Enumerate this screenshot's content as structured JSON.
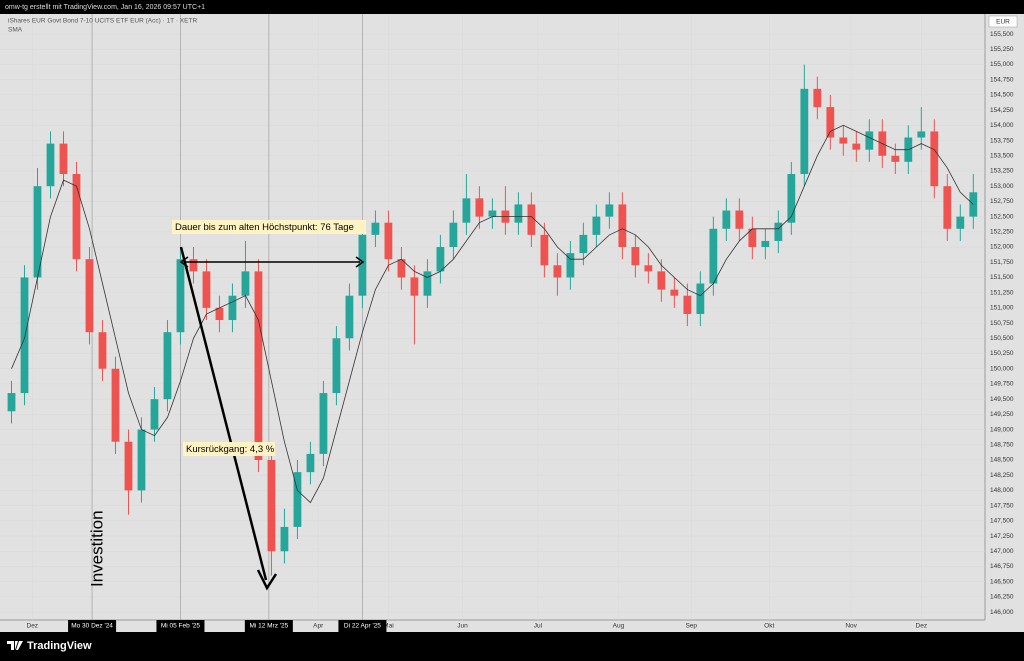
{
  "header": {
    "author_line": "omw-tg erstellt mit TradingView.com, Jan 16, 2026 09:57 UTC+1",
    "symbol": "iShares EUR Govt Bond 7-10 UCITS ETF EUR (Acc) · 1T · XETR",
    "indicator": "SMA",
    "currency": "EUR"
  },
  "footer": {
    "brand": "TradingView"
  },
  "chart_data": {
    "type": "candlestick",
    "up_color": "#26a69a",
    "down_color": "#ef5350",
    "sma_color": "#333333",
    "xlim": [
      0,
      75.4
    ],
    "ylim": [
      145.87,
      155.83
    ],
    "grid": true,
    "opens": [
      149.3,
      149.6,
      151.5,
      153.0,
      153.7,
      153.2,
      151.8,
      150.6,
      150.0,
      148.8,
      148.0,
      149.0,
      149.5,
      150.6,
      151.8,
      151.6,
      151.0,
      150.8,
      151.2,
      151.6,
      148.5,
      147.0,
      147.4,
      148.3,
      148.6,
      149.6,
      150.5,
      151.2,
      152.2,
      152.4,
      151.8,
      151.5,
      151.2,
      151.6,
      152.0,
      152.4,
      152.8,
      152.5,
      152.6,
      152.4,
      152.7,
      152.2,
      151.7,
      151.5,
      151.9,
      152.2,
      152.5,
      152.7,
      152.0,
      151.7,
      151.6,
      151.3,
      151.2,
      150.9,
      151.4,
      152.3,
      152.6,
      152.3,
      152.0,
      152.1,
      152.4,
      153.2,
      154.6,
      154.3,
      153.8,
      153.7,
      153.6,
      153.9,
      153.5,
      153.4,
      153.8,
      153.9,
      153.0,
      152.3,
      152.5
    ],
    "highs": [
      149.8,
      151.7,
      153.3,
      153.9,
      153.9,
      153.4,
      152.0,
      150.8,
      150.2,
      149.0,
      149.2,
      149.7,
      150.8,
      152.0,
      152.0,
      151.8,
      151.2,
      151.4,
      152.1,
      151.8,
      148.7,
      147.7,
      148.5,
      148.8,
      149.8,
      150.7,
      151.4,
      152.4,
      152.6,
      152.6,
      152.0,
      151.7,
      151.8,
      152.2,
      152.6,
      153.2,
      153.0,
      152.8,
      153.0,
      152.9,
      152.9,
      152.4,
      151.9,
      152.1,
      152.4,
      152.7,
      152.9,
      152.9,
      152.2,
      151.9,
      151.8,
      151.5,
      151.4,
      151.6,
      152.5,
      152.8,
      152.8,
      152.5,
      152.3,
      152.6,
      153.4,
      155.0,
      154.8,
      154.5,
      154.0,
      153.9,
      154.1,
      154.1,
      153.7,
      154.0,
      154.3,
      154.1,
      153.2,
      152.7,
      153.2
    ],
    "lows": [
      149.1,
      149.4,
      151.3,
      152.8,
      153.0,
      151.6,
      150.4,
      149.8,
      148.6,
      147.6,
      147.8,
      148.8,
      149.3,
      150.4,
      151.4,
      150.8,
      150.6,
      150.6,
      151.0,
      148.3,
      146.6,
      146.8,
      147.2,
      148.1,
      148.4,
      149.4,
      150.3,
      151.0,
      152.0,
      151.6,
      151.3,
      150.4,
      151.0,
      151.4,
      151.8,
      152.2,
      152.3,
      152.3,
      152.2,
      152.2,
      152.0,
      151.5,
      151.2,
      151.3,
      151.7,
      152.0,
      152.3,
      151.8,
      151.5,
      151.4,
      151.1,
      151.0,
      150.7,
      150.7,
      151.2,
      152.1,
      152.1,
      151.8,
      151.8,
      151.9,
      152.2,
      153.0,
      154.1,
      153.6,
      153.5,
      153.4,
      153.4,
      153.3,
      153.2,
      153.2,
      153.6,
      152.8,
      152.1,
      152.1,
      152.3
    ],
    "closes": [
      149.6,
      151.5,
      153.0,
      153.7,
      153.2,
      151.8,
      150.6,
      150.0,
      148.8,
      148.0,
      149.0,
      149.5,
      150.6,
      151.8,
      151.6,
      151.0,
      150.8,
      151.2,
      151.6,
      148.5,
      147.0,
      147.4,
      148.3,
      148.6,
      149.6,
      150.5,
      151.2,
      152.2,
      152.4,
      151.8,
      151.5,
      151.2,
      151.6,
      152.0,
      152.4,
      152.8,
      152.5,
      152.6,
      152.4,
      152.7,
      152.2,
      151.7,
      151.5,
      151.9,
      152.2,
      152.5,
      152.7,
      152.0,
      151.7,
      151.6,
      151.3,
      151.2,
      150.9,
      151.4,
      152.3,
      152.6,
      152.3,
      152.0,
      152.1,
      152.4,
      153.2,
      154.6,
      154.3,
      153.8,
      153.7,
      153.6,
      153.9,
      153.5,
      153.4,
      153.8,
      153.9,
      153.0,
      152.3,
      152.5,
      152.9
    ],
    "sma": [
      150.0,
      150.5,
      151.5,
      152.5,
      153.1,
      153.0,
      152.3,
      151.4,
      150.5,
      149.6,
      149.0,
      148.9,
      149.2,
      149.8,
      150.5,
      150.9,
      151.0,
      151.1,
      151.2,
      150.8,
      149.8,
      148.8,
      148.0,
      147.8,
      148.2,
      149.0,
      149.8,
      150.6,
      151.3,
      151.7,
      151.8,
      151.6,
      151.5,
      151.6,
      151.8,
      152.1,
      152.4,
      152.5,
      152.5,
      152.5,
      152.5,
      152.3,
      152.0,
      151.8,
      151.8,
      152.0,
      152.2,
      152.3,
      152.2,
      152.0,
      151.7,
      151.5,
      151.3,
      151.2,
      151.4,
      151.8,
      152.1,
      152.3,
      152.3,
      152.3,
      152.5,
      153.0,
      153.5,
      153.9,
      154.0,
      153.9,
      153.8,
      153.7,
      153.6,
      153.6,
      153.7,
      153.6,
      153.3,
      152.9,
      152.7
    ],
    "xticks": [
      {
        "value": 2.1,
        "label": "Dez"
      },
      {
        "value": 24.1,
        "label": "Apr"
      },
      {
        "value": 29.5,
        "label": "Mai"
      },
      {
        "value": 35.2,
        "label": "Jun"
      },
      {
        "value": 41,
        "label": "Jul"
      },
      {
        "value": 47.2,
        "label": "Aug"
      },
      {
        "value": 52.8,
        "label": "Sep"
      },
      {
        "value": 58.8,
        "label": "Okt"
      },
      {
        "value": 65.1,
        "label": "Nov"
      },
      {
        "value": 70.5,
        "label": "Dez"
      }
    ],
    "date_markers": [
      {
        "value": 6.7,
        "label": "Mo 30 Dez '24"
      },
      {
        "value": 13.5,
        "label": "Mi 05 Feb '25"
      },
      {
        "value": 20.3,
        "label": "Mi 12 Mrz '25"
      },
      {
        "value": 27.5,
        "label": "Di 22 Apr '25"
      }
    ],
    "yticks": [
      {
        "value": 146.0,
        "label": "146,000"
      },
      {
        "value": 146.25,
        "label": "146,250"
      },
      {
        "value": 146.5,
        "label": "146,500"
      },
      {
        "value": 146.75,
        "label": "146,750"
      },
      {
        "value": 147.0,
        "label": "147,000"
      },
      {
        "value": 147.25,
        "label": "147,250"
      },
      {
        "value": 147.5,
        "label": "147,500"
      },
      {
        "value": 147.75,
        "label": "147,750"
      },
      {
        "value": 148.0,
        "label": "148,000"
      },
      {
        "value": 148.25,
        "label": "148,250"
      },
      {
        "value": 148.5,
        "label": "148,500"
      },
      {
        "value": 148.75,
        "label": "148,750"
      },
      {
        "value": 149.0,
        "label": "149,000"
      },
      {
        "value": 149.25,
        "label": "149,250"
      },
      {
        "value": 149.5,
        "label": "149,500"
      },
      {
        "value": 149.75,
        "label": "149,750"
      },
      {
        "value": 150.0,
        "label": "150,000"
      },
      {
        "value": 150.25,
        "label": "150,250"
      },
      {
        "value": 150.5,
        "label": "150,500"
      },
      {
        "value": 150.75,
        "label": "150,750"
      },
      {
        "value": 151.0,
        "label": "151,000"
      },
      {
        "value": 151.25,
        "label": "151,250"
      },
      {
        "value": 151.5,
        "label": "151,500"
      },
      {
        "value": 151.75,
        "label": "151,750"
      },
      {
        "value": 152.0,
        "label": "152,000"
      },
      {
        "value": 152.25,
        "label": "152,250"
      },
      {
        "value": 152.5,
        "label": "152,500"
      },
      {
        "value": 152.75,
        "label": "152,750"
      },
      {
        "value": 153.0,
        "label": "153,000"
      },
      {
        "value": 153.25,
        "label": "153,250"
      },
      {
        "value": 153.5,
        "label": "153,500"
      },
      {
        "value": 153.75,
        "label": "153,750"
      },
      {
        "value": 154.0,
        "label": "154,000"
      },
      {
        "value": 154.25,
        "label": "154,250"
      },
      {
        "value": 154.5,
        "label": "154,500"
      },
      {
        "value": 154.75,
        "label": "154,750"
      },
      {
        "value": 155.0,
        "label": "155,000"
      },
      {
        "value": 155.25,
        "label": "155,250"
      },
      {
        "value": 155.5,
        "label": "155,500"
      }
    ],
    "annotations": {
      "duration": "Dauer bis zum alten Höchstpunkt: 76 Tage",
      "drawdown": "Kursrückgang: 4,3 %",
      "entry": "Investition"
    }
  }
}
